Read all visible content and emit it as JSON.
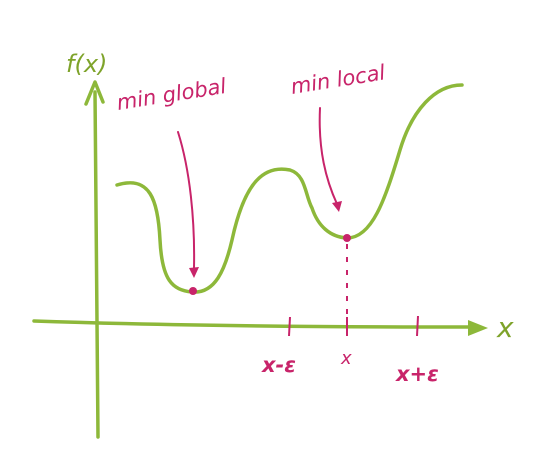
{
  "colors": {
    "curve": "#8db83a",
    "annotation": "#c8246a"
  },
  "labels": {
    "y_axis": "f(x)",
    "x_axis": "x",
    "global_min": "min global",
    "local_min": "min local",
    "tick_left": "x-ε",
    "tick_center": "x",
    "tick_right": "x+ε"
  }
}
